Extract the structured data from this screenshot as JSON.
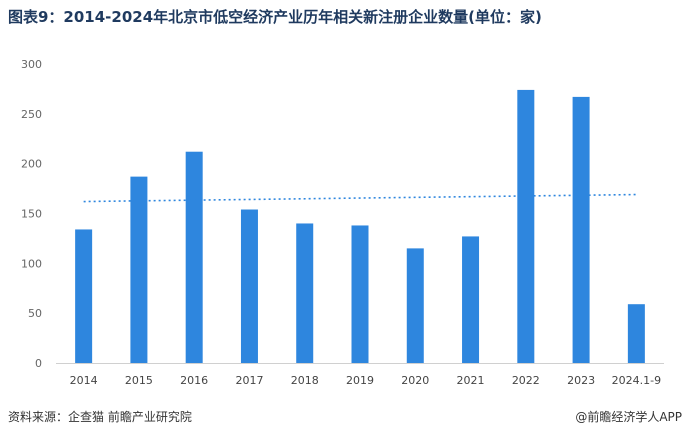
{
  "chart_data": {
    "type": "bar",
    "title": "图表9：2014-2024年北京市低空经济产业历年相关新注册企业数量(单位：家)",
    "categories": [
      "2014",
      "2015",
      "2016",
      "2017",
      "2018",
      "2019",
      "2020",
      "2021",
      "2022",
      "2023",
      "2024.1-9"
    ],
    "values": [
      134,
      187,
      212,
      154,
      140,
      138,
      115,
      127,
      274,
      267,
      59
    ],
    "ylim": [
      0,
      300
    ],
    "yticks": [
      0,
      50,
      100,
      150,
      200,
      250,
      300
    ],
    "trendline": {
      "style": "dotted",
      "start": 162,
      "end": 169
    },
    "grid": false,
    "legend": "none",
    "colors": {
      "bar": "#2e86de",
      "trend": "#2e86de"
    }
  },
  "footer": {
    "source": "资料来源：企查猫 前瞻产业研究院",
    "brand": "@前瞻经济学人APP"
  }
}
